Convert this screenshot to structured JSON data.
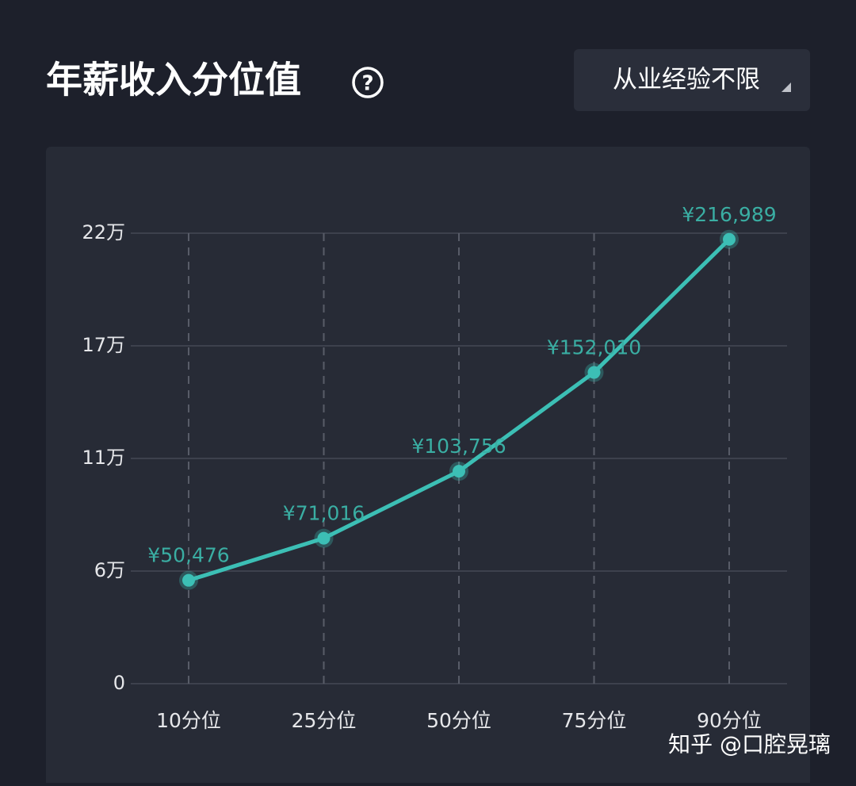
{
  "header": {
    "title": "年薪收入分位值",
    "filter": "从业经验不限"
  },
  "chart_data": {
    "type": "line",
    "categories": [
      "10分位",
      "25分位",
      "50分位",
      "75分位",
      "90分位"
    ],
    "series": [
      {
        "color": "#3cbfb5",
        "values": [
          50476,
          71016,
          103756,
          152010,
          216989
        ],
        "value_labels": [
          "¥50,476",
          "¥71,016",
          "¥103,756",
          "¥152,010",
          "¥216,989"
        ]
      }
    ],
    "ylim": [
      0,
      220000
    ],
    "yticks": [
      0,
      {
        "value": 55000,
        "label": "6万"
      },
      {
        "value": 110000,
        "label": "11万"
      },
      {
        "value": 165000,
        "label": "17万"
      },
      {
        "value": 220000,
        "label": "22万"
      }
    ],
    "grid": true
  },
  "watermark": "知乎 @口腔晃璃"
}
